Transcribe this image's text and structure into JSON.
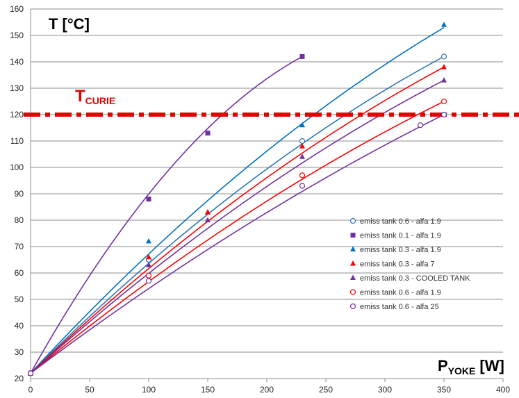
{
  "chart_data": {
    "type": "scatter",
    "ylabel_main": "T [°C]",
    "xlabel_main": "P",
    "xlabel_sub": "YOKE",
    "xlabel_unit": "[W]",
    "curie_label_main": "T",
    "curie_label_sub": "CURIE",
    "curie_value": 120,
    "xlim": [
      0,
      400
    ],
    "ylim": [
      20,
      160
    ],
    "xticks": [
      0,
      50,
      100,
      150,
      200,
      250,
      300,
      350,
      400
    ],
    "yticks": [
      20,
      30,
      40,
      50,
      60,
      70,
      80,
      90,
      100,
      110,
      120,
      130,
      140,
      150,
      160
    ],
    "grid": "horizontal",
    "legend_position": "right",
    "series": [
      {
        "name": "emiss tank 0.6 - alfa 1.9",
        "marker": "circle-open",
        "color": "#2e75b6",
        "x": [
          0,
          100,
          230,
          350
        ],
        "y": [
          22,
          65,
          110,
          142
        ],
        "fit_x": [
          0,
          350
        ],
        "fit_ctrl": [
          [
            0,
            22
          ],
          [
            175,
            91
          ],
          [
            350,
            142
          ]
        ]
      },
      {
        "name": "emiss tank 0.1 - alfa 1.9",
        "marker": "square",
        "color": "#7030a0",
        "x": [
          0,
          100,
          150,
          230
        ],
        "y": [
          22,
          88,
          113,
          142
        ],
        "fit_ctrl": [
          [
            0,
            22
          ],
          [
            115,
            98
          ],
          [
            230,
            142
          ]
        ]
      },
      {
        "name": "emiss tank 0.3 - alfa 1.9",
        "marker": "triangle",
        "color": "#0070c0",
        "x": [
          0,
          100,
          150,
          230,
          350
        ],
        "y": [
          22,
          72,
          83,
          116,
          154
        ],
        "fit_ctrl": [
          [
            0,
            22
          ],
          [
            175,
            97
          ],
          [
            350,
            153
          ]
        ]
      },
      {
        "name": "emiss tank 0.3 - alfa 7",
        "marker": "triangle",
        "color": "#ff0000",
        "x": [
          0,
          100,
          150,
          230,
          350
        ],
        "y": [
          22,
          66,
          83,
          108,
          138
        ],
        "fit_ctrl": [
          [
            0,
            22
          ],
          [
            175,
            88
          ],
          [
            350,
            138
          ]
        ]
      },
      {
        "name": "emiss tank 0.3 - COOLED TANK",
        "marker": "triangle",
        "color": "#7030a0",
        "x": [
          0,
          100,
          150,
          230,
          350
        ],
        "y": [
          22,
          63,
          80,
          104,
          133
        ],
        "fit_ctrl": [
          [
            0,
            22
          ],
          [
            175,
            85
          ],
          [
            350,
            133
          ]
        ]
      },
      {
        "name": "emiss tank 0.6 - alfa 1.9",
        "marker": "circle-open",
        "color": "#ff0000",
        "x": [
          0,
          100,
          230,
          350
        ],
        "y": [
          22,
          59,
          97,
          125
        ],
        "fit_ctrl": [
          [
            0,
            22
          ],
          [
            175,
            80
          ],
          [
            350,
            125
          ]
        ]
      },
      {
        "name": "emiss tank 0.6 - alfa 25",
        "marker": "circle-open",
        "color": "#7030a0",
        "x": [
          0,
          100,
          230,
          330,
          350
        ],
        "y": [
          22,
          57,
          93,
          116,
          120
        ],
        "fit_ctrl": [
          [
            0,
            22
          ],
          [
            175,
            76
          ],
          [
            350,
            120
          ]
        ]
      }
    ]
  }
}
